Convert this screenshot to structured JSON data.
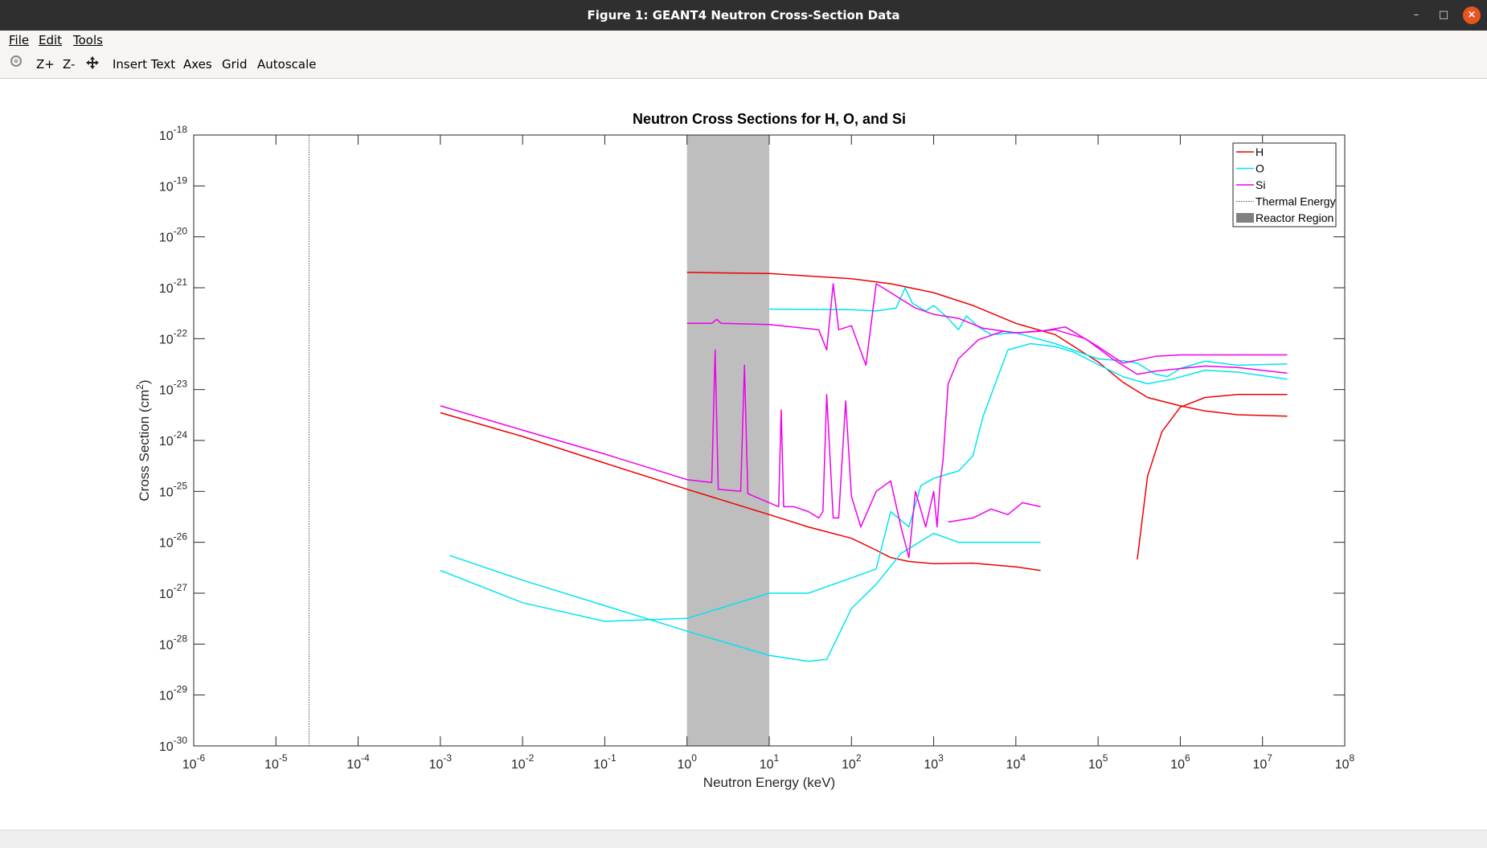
{
  "window": {
    "title": "Figure 1: GEANT4 Neutron Cross-Section Data"
  },
  "menu": {
    "file": "File",
    "edit": "Edit",
    "tools": "Tools"
  },
  "toolbar": {
    "zoom_in": "Z+",
    "zoom_out": "Z-",
    "insert_text": "Insert Text",
    "axes": "Axes",
    "grid": "Grid",
    "autoscale": "Autoscale"
  },
  "colors": {
    "H": "#ee0000",
    "O": "#00e5ee",
    "Si": "#ee00ee",
    "reactor": "#bebebe",
    "thermal": "#555555"
  },
  "chart_data": {
    "type": "line",
    "title": "Neutron Cross Sections for H, O, and Si",
    "xlabel": "Neutron Energy (keV)",
    "ylabel_base": "Cross Section (cm",
    "ylabel_sup": "2",
    "ylabel_tail": ")",
    "xscale": "log",
    "yscale": "log",
    "xlim": [
      1e-06,
      100000000.0
    ],
    "ylim": [
      1e-30,
      1e-18
    ],
    "grid": false,
    "legend_position": "top-right",
    "xticks": [
      {
        "value": 1e-06,
        "base": "10",
        "exp": "-6"
      },
      {
        "value": 1e-05,
        "base": "10",
        "exp": "-5"
      },
      {
        "value": 0.0001,
        "base": "10",
        "exp": "-4"
      },
      {
        "value": 0.001,
        "base": "10",
        "exp": "-3"
      },
      {
        "value": 0.01,
        "base": "10",
        "exp": "-2"
      },
      {
        "value": 0.1,
        "base": "10",
        "exp": "-1"
      },
      {
        "value": 1.0,
        "base": "10",
        "exp": "0"
      },
      {
        "value": 10.0,
        "base": "10",
        "exp": "1"
      },
      {
        "value": 100.0,
        "base": "10",
        "exp": "2"
      },
      {
        "value": 1000.0,
        "base": "10",
        "exp": "3"
      },
      {
        "value": 10000.0,
        "base": "10",
        "exp": "4"
      },
      {
        "value": 100000.0,
        "base": "10",
        "exp": "5"
      },
      {
        "value": 1000000.0,
        "base": "10",
        "exp": "6"
      },
      {
        "value": 10000000.0,
        "base": "10",
        "exp": "7"
      },
      {
        "value": 100000000.0,
        "base": "10",
        "exp": "8"
      }
    ],
    "yticks": [
      {
        "value": 1e-30,
        "base": "10",
        "exp": "-30"
      },
      {
        "value": 1e-29,
        "base": "10",
        "exp": "-29"
      },
      {
        "value": 1e-28,
        "base": "10",
        "exp": "-28"
      },
      {
        "value": 1e-27,
        "base": "10",
        "exp": "-27"
      },
      {
        "value": 1e-26,
        "base": "10",
        "exp": "-26"
      },
      {
        "value": 1e-25,
        "base": "10",
        "exp": "-25"
      },
      {
        "value": 1e-24,
        "base": "10",
        "exp": "-24"
      },
      {
        "value": 1e-23,
        "base": "10",
        "exp": "-23"
      },
      {
        "value": 1e-22,
        "base": "10",
        "exp": "-22"
      },
      {
        "value": 1e-21,
        "base": "10",
        "exp": "-21"
      },
      {
        "value": 1e-20,
        "base": "10",
        "exp": "-20"
      },
      {
        "value": 1e-19,
        "base": "10",
        "exp": "-19"
      },
      {
        "value": 1e-18,
        "base": "10",
        "exp": "-18"
      }
    ],
    "thermal_energy": 2.53e-05,
    "reactor_region": [
      1,
      10
    ],
    "legend": [
      {
        "label": "H",
        "kind": "line",
        "color": "#ee0000"
      },
      {
        "label": "O",
        "kind": "line",
        "color": "#00e5ee"
      },
      {
        "label": "Si",
        "kind": "line",
        "color": "#ee00ee"
      },
      {
        "label": "Thermal Energy",
        "kind": "dotted",
        "color": "#555555"
      },
      {
        "label": "Reactor Region",
        "kind": "patch",
        "color": "#808080"
      }
    ],
    "series": [
      {
        "element": "H",
        "color": "#ee0000",
        "points": [
          [
            1,
            2e-21
          ],
          [
            10,
            1.9e-21
          ],
          [
            30,
            1.7e-21
          ],
          [
            100,
            1.5e-21
          ],
          [
            300,
            1.2e-21
          ],
          [
            1000,
            8e-22
          ],
          [
            3000,
            4.5e-22
          ],
          [
            10000,
            2e-22
          ],
          [
            30000,
            1.2e-22
          ],
          [
            100000,
            3.5e-23
          ],
          [
            200000,
            1.4e-23
          ],
          [
            400000,
            7e-24
          ],
          [
            1000000,
            4.8e-24
          ],
          [
            2000000,
            3.8e-24
          ],
          [
            5000000,
            3.2e-24
          ],
          [
            20000000,
            3e-24
          ]
        ]
      },
      {
        "element": "H",
        "color": "#ee0000",
        "points": [
          [
            0.001,
            3.5e-24
          ],
          [
            0.01,
            1.2e-24
          ],
          [
            0.1,
            3.6e-25
          ],
          [
            1,
            1.1e-25
          ],
          [
            10,
            3.5e-26
          ],
          [
            30,
            2e-26
          ],
          [
            100,
            1.2e-26
          ],
          [
            200,
            7e-27
          ],
          [
            300,
            5e-27
          ],
          [
            500,
            4.2e-27
          ],
          [
            1000,
            3.8e-27
          ],
          [
            3000,
            3.9e-27
          ],
          [
            10000,
            3.3e-27
          ],
          [
            20000,
            2.8e-27
          ]
        ]
      },
      {
        "element": "H",
        "color": "#ee0000",
        "points": [
          [
            300000,
            4.6e-27
          ],
          [
            400000,
            2e-25
          ],
          [
            600000,
            1.5e-24
          ],
          [
            1000000,
            4.5e-24
          ],
          [
            2000000,
            7e-24
          ],
          [
            5000000,
            8e-24
          ],
          [
            20000000,
            8e-24
          ]
        ]
      },
      {
        "element": "O",
        "color": "#00e5ee",
        "points": [
          [
            10,
            3.8e-22
          ],
          [
            100,
            3.7e-22
          ],
          [
            200,
            3.5e-22
          ],
          [
            350,
            4e-22
          ],
          [
            450,
            1e-21
          ],
          [
            550,
            5e-22
          ],
          [
            800,
            3.5e-22
          ],
          [
            1000,
            4.5e-22
          ],
          [
            1500,
            2.5e-22
          ],
          [
            2000,
            1.5e-22
          ],
          [
            2500,
            2.8e-22
          ],
          [
            3500,
            1.7e-22
          ],
          [
            5000,
            1.2e-22
          ],
          [
            10000,
            1.3e-22
          ],
          [
            30000,
            8e-23
          ],
          [
            100000,
            4e-23
          ],
          [
            200000,
            3.7e-23
          ],
          [
            300000,
            3.3e-23
          ],
          [
            500000,
            2e-23
          ],
          [
            700000,
            1.8e-23
          ],
          [
            1000000,
            2.6e-23
          ],
          [
            2000000,
            3.6e-23
          ],
          [
            5000000,
            3e-23
          ],
          [
            20000000,
            3.2e-23
          ]
        ]
      },
      {
        "element": "O",
        "color": "#00e5ee",
        "points": [
          [
            20000000,
            1.6e-23
          ],
          [
            5000000,
            2.2e-23
          ],
          [
            2000000,
            2.4e-23
          ],
          [
            800000,
            1.6e-23
          ],
          [
            400000,
            1.3e-23
          ],
          [
            200000,
            1.8e-23
          ],
          [
            100000,
            3.1e-23
          ],
          [
            50000,
            5.5e-23
          ],
          [
            30000,
            7e-23
          ],
          [
            15000,
            8e-23
          ],
          [
            8000,
            6e-23
          ],
          [
            4000,
            3e-24
          ],
          [
            3000,
            5e-25
          ],
          [
            2000,
            2.5e-25
          ],
          [
            1500,
            2.2e-25
          ],
          [
            1000,
            1.8e-25
          ],
          [
            700,
            1.3e-25
          ],
          [
            500,
            2e-26
          ],
          [
            300,
            4e-26
          ],
          [
            200,
            3e-27
          ],
          [
            100,
            2e-27
          ],
          [
            30,
            1e-27
          ],
          [
            10,
            1e-27
          ],
          [
            1,
            3.2e-28
          ],
          [
            0.1,
            2.8e-28
          ],
          [
            0.01,
            6.5e-28
          ],
          [
            0.001,
            2.8e-27
          ]
        ]
      },
      {
        "element": "O",
        "color": "#00e5ee",
        "points": [
          [
            0.0013,
            5.5e-27
          ],
          [
            0.01,
            1.8e-27
          ],
          [
            0.1,
            5.7e-28
          ],
          [
            1,
            1.8e-28
          ],
          [
            10,
            6e-29
          ],
          [
            30,
            4.6e-29
          ],
          [
            50,
            5e-29
          ],
          [
            100,
            5e-28
          ],
          [
            200,
            1.5e-27
          ],
          [
            400,
            6e-27
          ],
          [
            1000,
            1.5e-26
          ],
          [
            2000,
            1e-26
          ],
          [
            20000,
            1e-26
          ]
        ]
      },
      {
        "element": "Si",
        "color": "#ee00ee",
        "points": [
          [
            1,
            2e-22
          ],
          [
            2,
            2e-22
          ],
          [
            2.3,
            2.4e-22
          ],
          [
            2.6,
            2e-22
          ],
          [
            10,
            1.9e-22
          ],
          [
            40,
            1.5e-22
          ],
          [
            50,
            6e-23
          ],
          [
            60,
            1.2e-21
          ],
          [
            70,
            1.5e-22
          ],
          [
            100,
            1.8e-22
          ],
          [
            150,
            3e-23
          ],
          [
            200,
            1.2e-21
          ],
          [
            300,
            8e-22
          ],
          [
            400,
            6e-22
          ],
          [
            600,
            4e-22
          ],
          [
            1000,
            3e-22
          ],
          [
            2000,
            2.5e-22
          ],
          [
            4000,
            1.6e-22
          ],
          [
            10000,
            1.3e-22
          ],
          [
            20000,
            1.4e-22
          ],
          [
            40000,
            1.7e-22
          ],
          [
            100000,
            7e-23
          ],
          [
            200000,
            3.3e-23
          ],
          [
            500000,
            4.5e-23
          ],
          [
            1000000,
            4.8e-23
          ],
          [
            20000000,
            4.8e-23
          ]
        ]
      },
      {
        "element": "Si",
        "color": "#ee00ee",
        "points": [
          [
            20000000,
            2.1e-23
          ],
          [
            5000000,
            2.7e-23
          ],
          [
            2000000,
            2.9e-23
          ],
          [
            500000,
            2.3e-23
          ],
          [
            300000,
            2e-23
          ],
          [
            150000,
            4e-23
          ],
          [
            70000,
            1e-22
          ],
          [
            30000,
            1.5e-22
          ],
          [
            10000,
            1.3e-22
          ],
          [
            7000,
            1.4e-22
          ],
          [
            3500,
            9.5e-23
          ],
          [
            2000,
            4e-23
          ],
          [
            1500,
            1.3e-23
          ],
          [
            1300,
            4e-25
          ],
          [
            1200,
            1.5e-25
          ],
          [
            1100,
            2e-26
          ],
          [
            1000,
            1e-25
          ],
          [
            800,
            2e-26
          ],
          [
            600,
            1e-25
          ],
          [
            500,
            5e-27
          ],
          [
            400,
            2e-26
          ],
          [
            300,
            1.6e-25
          ],
          [
            200,
            1e-25
          ],
          [
            130,
            2e-26
          ],
          [
            100,
            8e-26
          ],
          [
            85,
            6e-24
          ],
          [
            70,
            3e-26
          ],
          [
            60,
            3e-26
          ],
          [
            50,
            8e-24
          ],
          [
            45,
            4e-26
          ],
          [
            40,
            3e-26
          ],
          [
            30,
            4e-26
          ],
          [
            20,
            5e-26
          ],
          [
            15,
            5e-26
          ],
          [
            14,
            4e-24
          ],
          [
            13,
            5e-26
          ],
          [
            10,
            6e-26
          ],
          [
            5.5,
            9e-26
          ],
          [
            5,
            3e-23
          ],
          [
            4.5,
            1e-25
          ],
          [
            2.4,
            1.1e-25
          ],
          [
            2.2,
            6e-23
          ],
          [
            2,
            1.5e-25
          ],
          [
            1,
            1.7e-25
          ],
          [
            0.1,
            5.4e-25
          ],
          [
            0.01,
            1.6e-24
          ],
          [
            0.001,
            4.8e-24
          ]
        ]
      },
      {
        "element": "Si",
        "color": "#ee00ee",
        "points": [
          [
            1500,
            2.5e-26
          ],
          [
            3000,
            3e-26
          ],
          [
            5000,
            4.5e-26
          ],
          [
            8000,
            3.5e-26
          ],
          [
            12000,
            6e-26
          ],
          [
            20000,
            5e-26
          ]
        ]
      }
    ]
  }
}
